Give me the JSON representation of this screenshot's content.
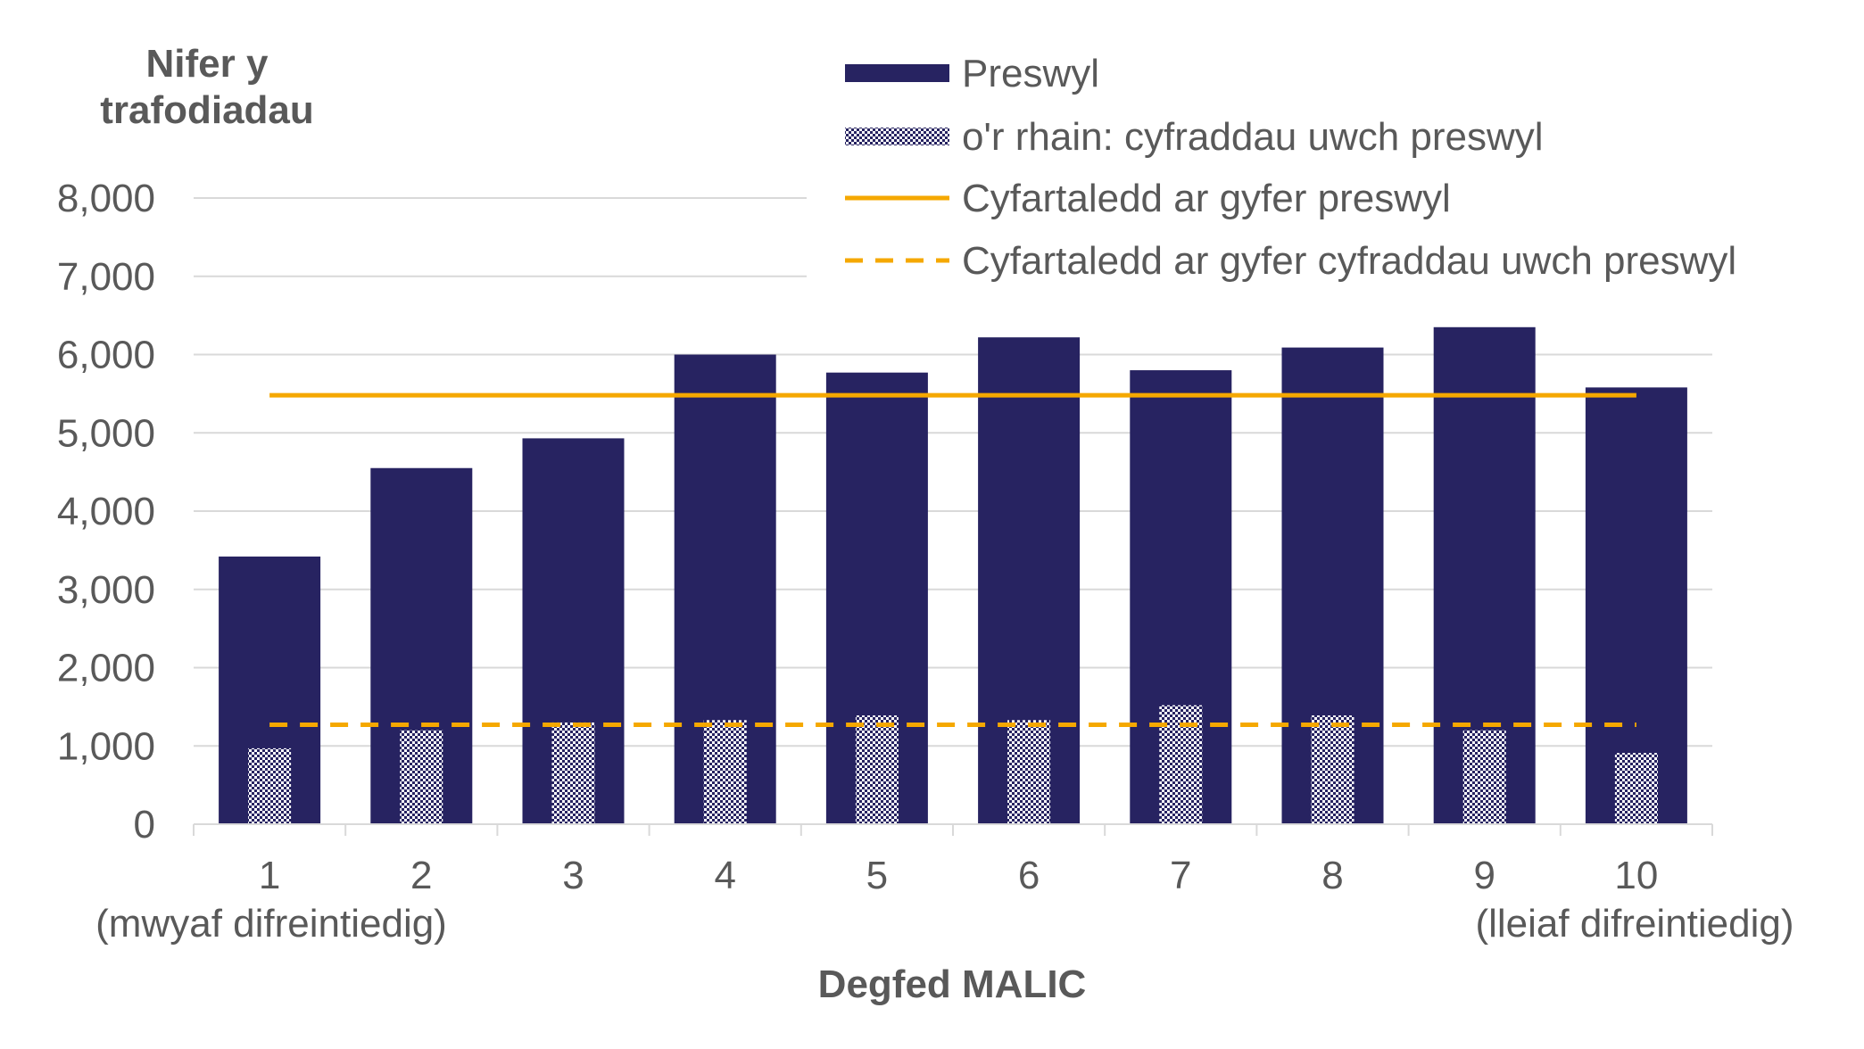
{
  "chart_data": {
    "type": "bar",
    "ylabel": [
      "Nifer y",
      "trafodiadau"
    ],
    "xlabel": "Degfed MALIC",
    "categories": [
      "1",
      "2",
      "3",
      "4",
      "5",
      "6",
      "7",
      "8",
      "9",
      "10"
    ],
    "category_sublabels": {
      "first": "(mwyaf difreintiedig)",
      "last": "(lleiaf difreintiedig)"
    },
    "ylim": [
      0,
      8000
    ],
    "yticks": [
      "0",
      "1,000",
      "2,000",
      "3,000",
      "4,000",
      "5,000",
      "6,000",
      "7,000",
      "8,000"
    ],
    "grid": true,
    "legend_position": "top-right",
    "series": [
      {
        "name": "Preswyl",
        "kind": "bar",
        "color": "#272361",
        "values": [
          3420,
          4550,
          4930,
          6000,
          5770,
          6220,
          5800,
          6090,
          6350,
          5580
        ]
      },
      {
        "name": "o'r rhain: cyfraddau uwch preswyl",
        "kind": "bar-hatched",
        "color": "#272361",
        "values": [
          970,
          1200,
          1300,
          1330,
          1390,
          1330,
          1520,
          1390,
          1200,
          910
        ]
      },
      {
        "name": "Cyfartaledd ar gyfer preswyl",
        "kind": "line",
        "color": "#F5A800",
        "value": 5480
      },
      {
        "name": "Cyfartaledd ar gyfer cyfraddau uwch preswyl",
        "kind": "dashed-line",
        "color": "#F5A800",
        "value": 1270
      }
    ]
  }
}
